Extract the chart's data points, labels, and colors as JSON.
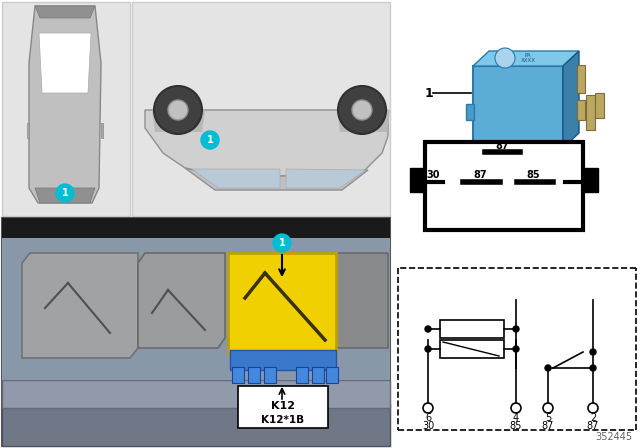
{
  "doc_number": "352445",
  "bg_color": "#ffffff",
  "car_top_view_bg": "#e0e0e0",
  "car_side_view_bg": "#e0e0e0",
  "relay_blue": "#5bacd6",
  "relay_yellow": "#f0d000",
  "teal_color": "#00bcd4",
  "k12_label": "K12",
  "k12_1b_label": "K12*1B",
  "component_label": "1",
  "circuit_pin_nums": [
    "6",
    "4",
    "5",
    "2"
  ],
  "circuit_sig_names": [
    "30",
    "85",
    "87",
    "87"
  ],
  "relay_pin_top": "87",
  "relay_pin_mid_left": "30",
  "relay_pin_mid_center": "87",
  "relay_pin_mid_right": "85"
}
